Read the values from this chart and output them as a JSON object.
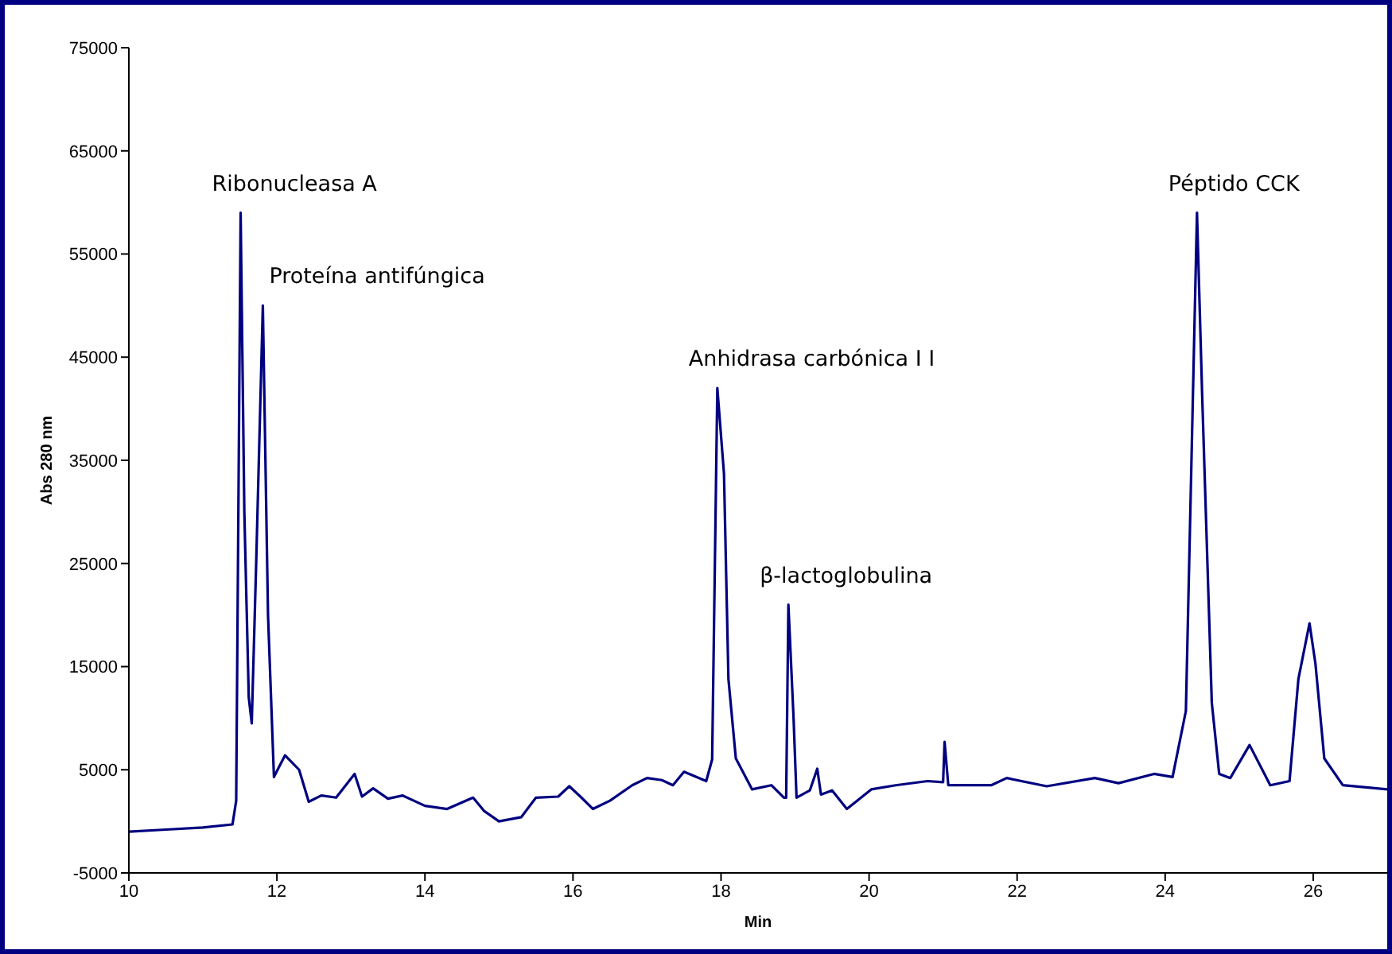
{
  "chart_data": {
    "type": "line",
    "xlabel": "Min",
    "ylabel": "Abs 280 nm",
    "xlim": [
      10,
      27
    ],
    "xticks": [
      10,
      12,
      14,
      16,
      18,
      20,
      22,
      24,
      26
    ],
    "ylim": [
      -5000,
      75000
    ],
    "yticks": [
      -5000,
      5000,
      15000,
      25000,
      35000,
      45000,
      55000,
      65000,
      75000
    ],
    "grid": false,
    "legend": false,
    "marker": "none",
    "line_style": "solid",
    "series": [
      {
        "color": "#000080",
        "x": [
          10,
          10.5,
          11,
          11.4,
          11.45,
          11.51,
          11.56,
          11.62,
          11.66,
          11.72,
          11.81,
          11.88,
          11.96,
          12.11,
          12.3,
          12.43,
          12.6,
          12.8,
          13.05,
          13.15,
          13.3,
          13.5,
          13.7,
          14.0,
          14.3,
          14.65,
          14.8,
          15.0,
          15.3,
          15.5,
          15.8,
          15.95,
          16.1,
          16.27,
          16.5,
          16.8,
          17.0,
          17.2,
          17.35,
          17.5,
          17.8,
          17.88,
          17.95,
          18.04,
          18.1,
          18.2,
          18.42,
          18.68,
          18.85,
          18.88,
          18.91,
          18.98,
          19.02,
          19.2,
          19.3,
          19.35,
          19.5,
          19.7,
          20.03,
          20.36,
          20.79,
          21.0,
          21.02,
          21.07,
          21.65,
          21.86,
          22.4,
          23.05,
          23.37,
          23.85,
          24.1,
          24.28,
          24.43,
          24.5,
          24.63,
          24.73,
          24.88,
          25.14,
          25.42,
          25.68,
          25.8,
          25.95,
          26.03,
          26.15,
          26.4,
          27.0
        ],
        "values": [
          -1000,
          -800,
          -600,
          -300,
          2000,
          59000,
          30000,
          12000,
          9500,
          25000,
          50000,
          20000,
          4300,
          6400,
          5000,
          1900,
          2500,
          2300,
          4600,
          2400,
          3200,
          2200,
          2500,
          1500,
          1200,
          2300,
          1000,
          0,
          400,
          2300,
          2400,
          3400,
          2400,
          1200,
          2000,
          3500,
          4200,
          4000,
          3500,
          4800,
          3900,
          6000,
          42000,
          33700,
          13800,
          6100,
          3100,
          3500,
          2300,
          2300,
          21000,
          10000,
          2300,
          3000,
          5100,
          2600,
          3000,
          1200,
          3100,
          3500,
          3900,
          3800,
          7700,
          3500,
          3500,
          4200,
          3400,
          4200,
          3700,
          4600,
          4300,
          10700,
          59000,
          41300,
          11500,
          4600,
          4200,
          7400,
          3500,
          3900,
          13800,
          19200,
          15300,
          6100,
          3500,
          3100
        ]
      }
    ],
    "annotations": [
      {
        "text": "Ribonucleasa A",
        "x": 11.51,
        "y": 59000
      },
      {
        "text": "Proteína antifúngica",
        "x": 11.81,
        "y": 50000
      },
      {
        "text": "Anhidrasa carbónica I I",
        "x": 17.95,
        "y": 42000
      },
      {
        "text": "β-lactoglobulina",
        "x": 18.91,
        "y": 21000
      },
      {
        "text": "Péptido CCK",
        "x": 24.43,
        "y": 59000
      }
    ]
  }
}
